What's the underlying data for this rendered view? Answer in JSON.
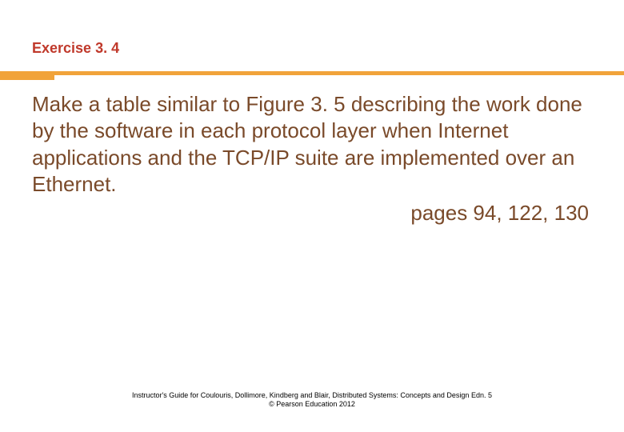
{
  "colors": {
    "title": "#c0392b",
    "rule": "#f1a33a",
    "body": "#7a4a2a",
    "footer": "#000000",
    "background": "#ffffff"
  },
  "title": "Exercise 3. 4",
  "body": "Make a table similar to Figure 3. 5 describing the work done by the software in each protocol layer when Internet applications and the TCP/IP suite are implemented over an Ethernet.",
  "pages": "pages 94, 122, 130",
  "footer": {
    "line1": "Instructor's Guide for  Coulouris, Dollimore, Kindberg and Blair,  Distributed Systems: Concepts and Design   Edn. 5",
    "line2": "©  Pearson Education 2012"
  }
}
